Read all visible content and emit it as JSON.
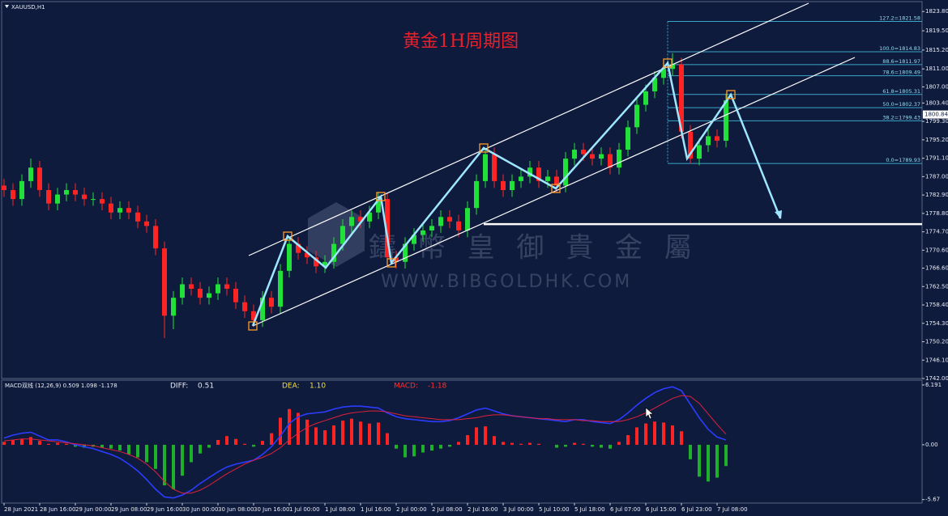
{
  "chart_data": [
    {
      "type": "candlestick",
      "title": "黄金1H周期图",
      "symbol": "XAUUSD,H1",
      "watermark": "鑄 幣 皇 御 貴 金 屬",
      "watermark_url": "WWW.BIBGOLDHK.COM",
      "categories": [
        "28 Jun 2021",
        null,
        null,
        null,
        "28 Jun 16:00",
        null,
        null,
        null,
        "29 Jun 00:00",
        null,
        null,
        null,
        "29 Jun 08:00",
        null,
        null,
        null,
        "29 Jun 16:00",
        null,
        null,
        null,
        "30 Jun 00:00",
        null,
        null,
        null,
        "30 Jun 08:00",
        null,
        null,
        null,
        "30 Jun 16:00",
        null,
        null,
        null,
        "1 Jul 00:00",
        null,
        null,
        null,
        "1 Jul 08:00",
        null,
        null,
        null,
        "1 Jul 16:00",
        null,
        null,
        null,
        "2 Jul 00:00",
        null,
        null,
        null,
        "2 Jul 08:00",
        null,
        null,
        null,
        "2 Jul 16:00",
        null,
        null,
        null,
        "3 Jul 00:00",
        null,
        null,
        null,
        "5 Jul 10:00",
        null,
        null,
        null,
        "5 Jul 18:00",
        null,
        null,
        null,
        "6 Jul 07:00",
        null,
        null,
        null,
        "6 Jul 15:00",
        null,
        null,
        null,
        "6 Jul 23:00",
        null,
        null,
        null,
        "7 Jul 08:00",
        null
      ],
      "open": [
        1785,
        1784,
        1782,
        1786,
        1789,
        1784,
        1781,
        1783,
        1784,
        1783,
        1782,
        1782,
        1781,
        1779,
        1780,
        1779,
        1777,
        1776,
        1771,
        1756,
        1760,
        1763,
        1762,
        1760,
        1761,
        1763,
        1762,
        1759,
        1757,
        1755,
        1760,
        1758,
        1766,
        1772,
        1770,
        1769,
        1767,
        1768,
        1772,
        1776,
        1778,
        1777,
        1779,
        1782,
        1769,
        1768,
        1772,
        1774,
        1775,
        1776,
        1778,
        1777,
        1775,
        1780,
        1786,
        1792,
        1786,
        1784,
        1786,
        1787,
        1789,
        1786,
        1787,
        1785,
        1791,
        1793,
        1792,
        1791,
        1792,
        1789,
        1793,
        1798,
        1803,
        1806,
        1809,
        1811,
        1812,
        1797,
        1791,
        1794,
        1796,
        1795
      ],
      "high": [
        1786.5,
        1785.5,
        1787.5,
        1791,
        1790.5,
        1785.5,
        1784.5,
        1785.5,
        1785.5,
        1784.5,
        1783.5,
        1783.5,
        1782.5,
        1781.5,
        1781.5,
        1780.5,
        1778.5,
        1777.5,
        1772.5,
        1761.5,
        1764.5,
        1764.5,
        1763.5,
        1762.5,
        1764.5,
        1764.5,
        1763.5,
        1760.5,
        1758.5,
        1761.5,
        1761.5,
        1767.5,
        1773.5,
        1773.5,
        1771.5,
        1770.5,
        1769.5,
        1773.5,
        1777.5,
        1779.5,
        1779.5,
        1780.5,
        1783.5,
        1783.5,
        1770.5,
        1773.5,
        1775.5,
        1776.5,
        1777.5,
        1779.5,
        1779.5,
        1778.5,
        1781.5,
        1787.5,
        1793,
        1793.5,
        1787.5,
        1787.5,
        1788.5,
        1790.5,
        1790.5,
        1788.5,
        1788.5,
        1792.5,
        1794.5,
        1794.5,
        1793.5,
        1793.5,
        1793.5,
        1794.5,
        1799.5,
        1804.5,
        1807.5,
        1810.5,
        1812.5,
        1814.5,
        1813.5,
        1798.5,
        1795.5,
        1797.5,
        1797.5,
        1805.5
      ],
      "low": [
        1782.5,
        1780.5,
        1780.5,
        1784.5,
        1782.5,
        1779.5,
        1779.5,
        1781.5,
        1781.5,
        1780.5,
        1780.5,
        1779.5,
        1777.5,
        1777.5,
        1777.5,
        1775.5,
        1774.5,
        1769.5,
        1751,
        1753,
        1758.5,
        1760.5,
        1758.5,
        1758.5,
        1759.5,
        1760.5,
        1757.5,
        1755.5,
        1753.5,
        1753.5,
        1756.5,
        1756.5,
        1764.5,
        1768.5,
        1767.5,
        1765.5,
        1765.5,
        1766.5,
        1770.5,
        1774.5,
        1775.5,
        1775.5,
        1777.5,
        1767.5,
        1766.5,
        1766.5,
        1770.5,
        1772.5,
        1773.5,
        1774.5,
        1775.5,
        1773.5,
        1773.5,
        1778.5,
        1784.5,
        1784.5,
        1782.5,
        1782.5,
        1784.5,
        1785.5,
        1784.5,
        1784.5,
        1783.5,
        1783.5,
        1789.5,
        1790.5,
        1789.5,
        1789.5,
        1787.5,
        1787.5,
        1791.5,
        1796.5,
        1801.5,
        1804.5,
        1807.5,
        1809.5,
        1795.5,
        1789.9,
        1789.5,
        1792.5,
        1793.5,
        1793.5
      ],
      "close": [
        1784,
        1782,
        1786,
        1789,
        1784,
        1781,
        1783,
        1784,
        1783,
        1782,
        1782,
        1781,
        1779,
        1780,
        1779,
        1777,
        1776,
        1771,
        1756,
        1760,
        1763,
        1762,
        1760,
        1761,
        1763,
        1762,
        1759,
        1757,
        1755,
        1760,
        1758,
        1766,
        1772,
        1770,
        1769,
        1767,
        1768,
        1772,
        1776,
        1778,
        1777,
        1779,
        1782,
        1769,
        1768,
        1772,
        1774,
        1775,
        1776,
        1778,
        1777,
        1775,
        1780,
        1786,
        1792,
        1786,
        1784,
        1786,
        1787,
        1789,
        1786,
        1787,
        1785,
        1791,
        1793,
        1792,
        1791,
        1792,
        1789,
        1793,
        1798,
        1803,
        1806,
        1809,
        1811,
        1812,
        1797,
        1791,
        1794,
        1796,
        1795,
        1804
      ],
      "up_color": "#22e03a",
      "down_color": "#ff2424",
      "ylim": [
        1742,
        1826
      ],
      "yticks": [
        {
          "value": 1823.8,
          "label": "1823.80"
        },
        {
          "value": 1819.5,
          "label": "1819.50"
        },
        {
          "value": 1815.2,
          "label": "1815.20"
        },
        {
          "value": 1811,
          "label": "1811.00"
        },
        {
          "value": 1807,
          "label": "1807.00"
        },
        {
          "value": 1803.4,
          "label": "1803.40"
        },
        {
          "value": 1799.3,
          "label": "1799.30"
        },
        {
          "value": 1795.2,
          "label": "1795.20"
        },
        {
          "value": 1791.1,
          "label": "1791.10"
        },
        {
          "value": 1787,
          "label": "1787.00"
        },
        {
          "value": 1782.9,
          "label": "1782.90"
        },
        {
          "value": 1778.8,
          "label": "1778.80"
        },
        {
          "value": 1774.7,
          "label": "1774.70"
        },
        {
          "value": 1770.6,
          "label": "1770.60"
        },
        {
          "value": 1766.6,
          "label": "1766.60"
        },
        {
          "value": 1762.5,
          "label": "1762.50"
        },
        {
          "value": 1758.4,
          "label": "1758.40"
        },
        {
          "value": 1754.3,
          "label": "1754.30"
        },
        {
          "value": 1750.2,
          "label": "1750.20"
        },
        {
          "value": 1746.1,
          "label": "1746.10"
        },
        {
          "value": 1742,
          "label": "1742.00"
        }
      ],
      "last_price": 1800.84,
      "fib_levels": [
        {
          "value": 1821.58,
          "label": "127.2=1821.58"
        },
        {
          "value": 1814.83,
          "label": "100.0=1814.83"
        },
        {
          "value": 1811.97,
          "label": "88.6=1811.97"
        },
        {
          "value": 1809.49,
          "label": "78.6=1809.49"
        },
        {
          "value": 1805.31,
          "label": "61.8=1805.31"
        },
        {
          "value": 1802.37,
          "label": "50.0=1802.37"
        },
        {
          "value": 1799.43,
          "label": "38.2=1799.43"
        },
        {
          "value": 1789.93,
          "label": "0.0=1789.93"
        }
      ],
      "fib_color": "#3aa6c8",
      "support_line": 1776.4
    },
    {
      "type": "macd",
      "label": "MACD双线 (12,26,9) 0.509 1.098 -1.178",
      "diff_name": "DIFF:",
      "diff_value": 0.51,
      "dea_name": "DEA:",
      "dea_value": {
        "value": 1.1,
        "label": "1.10"
      },
      "macd_name": "MACD:",
      "macd_value": -1.18,
      "histogram": [
        0.3,
        0.5,
        0.6,
        0.8,
        0.4,
        0.1,
        0.2,
        0.1,
        -0.2,
        -0.3,
        -0.2,
        -0.3,
        -0.4,
        -0.6,
        -1.0,
        -1.3,
        -1.8,
        -2.5,
        -4.2,
        -4.6,
        -3.2,
        -1.8,
        -0.9,
        -0.3,
        0.5,
        0.9,
        0.6,
        0.1,
        -0.2,
        0.4,
        1.2,
        2.8,
        3.7,
        3.3,
        2.6,
        1.8,
        1.5,
        2.0,
        2.5,
        2.7,
        2.4,
        2.2,
        2.3,
        1.2,
        -0.4,
        -1.3,
        -1.2,
        -0.8,
        -0.6,
        -0.4,
        -0.2,
        0.3,
        1.0,
        1.8,
        1.9,
        0.9,
        0.3,
        0.2,
        0.1,
        0.2,
        0.1,
        0.0,
        -0.3,
        -0.2,
        0.2,
        0.1,
        -0.2,
        -0.3,
        -0.4,
        0.3,
        1.0,
        1.8,
        2.2,
        2.4,
        2.3,
        2.0,
        1.4,
        -1.5,
        -3.3,
        -3.8,
        -3.4,
        -2.2
      ],
      "diff": [
        0.7,
        1.0,
        1.2,
        1.3,
        0.9,
        0.5,
        0.5,
        0.3,
        0.0,
        -0.2,
        -0.4,
        -0.7,
        -1.0,
        -1.4,
        -2.0,
        -2.7,
        -3.6,
        -4.6,
        -5.4,
        -5.5,
        -5.2,
        -4.7,
        -4.0,
        -3.4,
        -2.8,
        -2.3,
        -2.0,
        -1.8,
        -1.6,
        -1.0,
        -0.2,
        0.9,
        2.2,
        2.9,
        3.2,
        3.3,
        3.4,
        3.7,
        3.9,
        4.0,
        4.0,
        3.9,
        3.8,
        3.3,
        2.9,
        2.7,
        2.6,
        2.5,
        2.4,
        2.4,
        2.5,
        2.8,
        3.2,
        3.6,
        3.8,
        3.5,
        3.2,
        3.0,
        2.9,
        2.8,
        2.7,
        2.6,
        2.5,
        2.4,
        2.6,
        2.6,
        2.4,
        2.3,
        2.2,
        2.6,
        3.3,
        4.1,
        4.8,
        5.4,
        5.8,
        6.0,
        5.6,
        4.2,
        2.8,
        1.6,
        0.8,
        0.5
      ],
      "dea": [
        0.4,
        0.5,
        0.6,
        0.6,
        0.5,
        0.4,
        0.3,
        0.2,
        0.1,
        0.0,
        -0.1,
        -0.3,
        -0.5,
        -0.7,
        -1.0,
        -1.4,
        -2.0,
        -2.8,
        -3.8,
        -4.6,
        -5.0,
        -5.0,
        -4.7,
        -4.2,
        -3.6,
        -3.0,
        -2.5,
        -2.0,
        -1.6,
        -1.3,
        -0.9,
        -0.3,
        0.5,
        1.2,
        1.8,
        2.2,
        2.5,
        2.8,
        3.1,
        3.3,
        3.4,
        3.5,
        3.5,
        3.4,
        3.2,
        3.0,
        2.9,
        2.8,
        2.7,
        2.6,
        2.6,
        2.6,
        2.7,
        2.8,
        3.0,
        3.1,
        3.1,
        3.0,
        2.9,
        2.8,
        2.7,
        2.7,
        2.6,
        2.6,
        2.6,
        2.5,
        2.5,
        2.4,
        2.4,
        2.4,
        2.6,
        2.9,
        3.3,
        3.8,
        4.3,
        4.8,
        5.1,
        5.0,
        4.3,
        3.2,
        2.1,
        1.1
      ],
      "pos_color": "#ff2424",
      "neg_color": "#1fb02a",
      "diff_color": "#2b3cff",
      "dea_color": "#e0203a",
      "ylim": [
        -6.03,
        6.69
      ],
      "yticks": [
        6.191,
        {
          "value": 0,
          "label": "0.00"
        },
        -5.67
      ]
    }
  ]
}
